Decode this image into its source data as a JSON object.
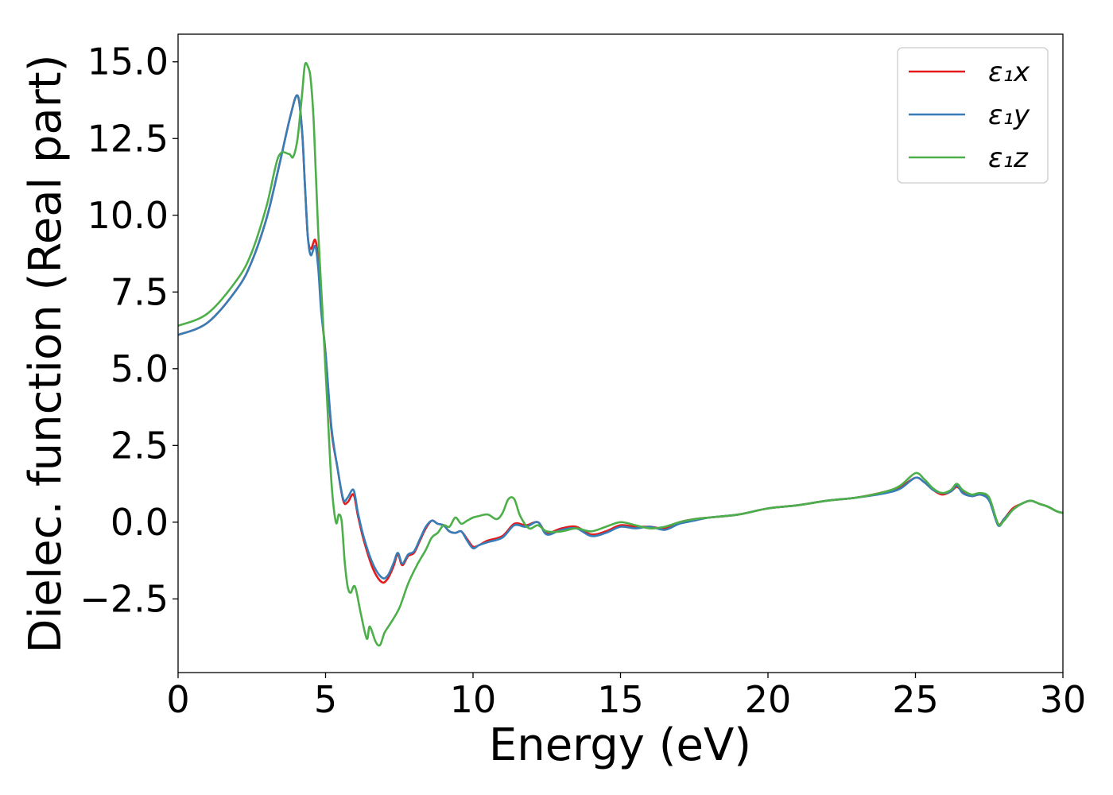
{
  "chart_data": {
    "type": "line",
    "title": "",
    "xlabel": "Energy (eV)",
    "ylabel": "Dielec. function (Real part)",
    "xlim": [
      0,
      30
    ],
    "ylim": [
      -4.9,
      15.9
    ],
    "xticks": [
      0,
      5,
      10,
      15,
      20,
      25,
      30
    ],
    "xtick_labels": [
      "0",
      "5",
      "10",
      "15",
      "20",
      "25",
      "30"
    ],
    "yticks": [
      -2.5,
      0,
      2.5,
      5,
      7.5,
      10,
      12.5,
      15
    ],
    "ytick_labels": [
      "−2.5",
      "0.0",
      "2.5",
      "5.0",
      "7.5",
      "10.0",
      "12.5",
      "15.0"
    ],
    "grid": false,
    "legend": {
      "position": "top-right"
    },
    "series": [
      {
        "name": "ε₁x",
        "color": "#e41a1c",
        "x": [
          0,
          1,
          2,
          2.5,
          3,
          3.4,
          3.8,
          4.05,
          4.2,
          4.3,
          4.4,
          4.5,
          4.65,
          4.75,
          4.85,
          5.0,
          5.2,
          5.4,
          5.6,
          5.75,
          5.95,
          6.1,
          6.3,
          6.6,
          6.9,
          7.1,
          7.3,
          7.45,
          7.6,
          7.8,
          8.0,
          8.2,
          8.4,
          8.6,
          8.8,
          9.0,
          9.2,
          9.4,
          9.6,
          9.8,
          10.0,
          10.2,
          10.5,
          11.0,
          11.4,
          11.8,
          12.2,
          12.5,
          13.0,
          13.5,
          14.0,
          14.5,
          15.0,
          15.5,
          16.0,
          16.5,
          17.0,
          17.5,
          18.0,
          19.0,
          20.0,
          21.0,
          22.0,
          23.0,
          24.0,
          24.5,
          25.0,
          25.3,
          25.6,
          25.9,
          26.2,
          26.4,
          26.6,
          26.9,
          27.2,
          27.5,
          27.8,
          28.0,
          28.3,
          28.6,
          28.9,
          29.2,
          29.5,
          29.8,
          30.0
        ],
        "y": [
          6.1,
          6.5,
          7.6,
          8.5,
          9.9,
          11.5,
          13.2,
          13.9,
          12.8,
          11.0,
          9.3,
          8.9,
          9.2,
          8.5,
          7.0,
          5.5,
          3.0,
          1.8,
          0.7,
          0.65,
          0.9,
          0.2,
          -0.6,
          -1.5,
          -1.95,
          -1.85,
          -1.45,
          -1.05,
          -1.4,
          -1.1,
          -1.0,
          -0.6,
          -0.2,
          0.05,
          -0.05,
          -0.1,
          -0.3,
          -0.35,
          -0.3,
          -0.55,
          -0.8,
          -0.75,
          -0.6,
          -0.45,
          -0.05,
          -0.1,
          0.0,
          -0.35,
          -0.2,
          -0.15,
          -0.4,
          -0.3,
          -0.1,
          -0.15,
          -0.15,
          -0.2,
          0.0,
          0.1,
          0.15,
          0.25,
          0.45,
          0.55,
          0.7,
          0.8,
          1.0,
          1.15,
          1.45,
          1.3,
          1.05,
          0.9,
          1.0,
          1.15,
          1.0,
          0.85,
          0.9,
          0.75,
          -0.05,
          0.1,
          0.45,
          0.6,
          0.7,
          0.6,
          0.5,
          0.35,
          0.3
        ]
      },
      {
        "name": "ε₁y",
        "color": "#377eb8",
        "x": [
          0,
          1,
          2,
          2.5,
          3,
          3.4,
          3.8,
          4.05,
          4.2,
          4.3,
          4.4,
          4.5,
          4.65,
          4.75,
          4.85,
          5.0,
          5.2,
          5.4,
          5.6,
          5.75,
          5.95,
          6.1,
          6.3,
          6.6,
          6.9,
          7.1,
          7.3,
          7.45,
          7.6,
          7.8,
          8.0,
          8.2,
          8.4,
          8.6,
          8.8,
          9.0,
          9.2,
          9.4,
          9.6,
          9.8,
          10.0,
          10.2,
          10.5,
          11.0,
          11.4,
          11.8,
          12.2,
          12.5,
          13.0,
          13.5,
          14.0,
          14.5,
          15.0,
          15.5,
          16.0,
          16.5,
          17.0,
          17.5,
          18.0,
          19.0,
          20.0,
          21.0,
          22.0,
          23.0,
          24.0,
          24.5,
          25.0,
          25.3,
          25.6,
          25.9,
          26.2,
          26.4,
          26.6,
          26.9,
          27.2,
          27.5,
          27.8,
          28.0,
          28.3,
          28.6,
          28.9,
          29.2,
          29.5,
          29.8,
          30.0
        ],
        "y": [
          6.1,
          6.5,
          7.6,
          8.5,
          9.9,
          11.5,
          13.2,
          13.9,
          12.8,
          11.0,
          9.3,
          8.7,
          9.0,
          8.3,
          6.9,
          5.5,
          3.1,
          1.8,
          0.75,
          0.8,
          1.05,
          0.3,
          -0.5,
          -1.35,
          -1.8,
          -1.75,
          -1.35,
          -1.0,
          -1.35,
          -1.05,
          -0.95,
          -0.55,
          -0.15,
          0.05,
          -0.05,
          -0.1,
          -0.3,
          -0.35,
          -0.3,
          -0.6,
          -0.85,
          -0.75,
          -0.65,
          -0.5,
          -0.1,
          -0.15,
          0.0,
          -0.4,
          -0.25,
          -0.2,
          -0.45,
          -0.35,
          -0.15,
          -0.2,
          -0.15,
          -0.25,
          -0.05,
          0.05,
          0.15,
          0.25,
          0.45,
          0.55,
          0.7,
          0.8,
          0.95,
          1.1,
          1.45,
          1.3,
          1.05,
          0.95,
          1.0,
          1.2,
          0.95,
          0.85,
          0.9,
          0.7,
          -0.1,
          0.1,
          0.4,
          0.6,
          0.7,
          0.6,
          0.5,
          0.35,
          0.3
        ]
      },
      {
        "name": "ε₁z",
        "color": "#4daf4a",
        "x": [
          0,
          1,
          2,
          2.5,
          3,
          3.4,
          3.75,
          3.9,
          4.05,
          4.2,
          4.3,
          4.42,
          4.5,
          4.6,
          4.75,
          4.9,
          5.05,
          5.2,
          5.35,
          5.45,
          5.55,
          5.65,
          5.75,
          5.85,
          6.0,
          6.2,
          6.4,
          6.5,
          6.7,
          6.85,
          7.0,
          7.2,
          7.5,
          7.8,
          8.1,
          8.4,
          8.6,
          8.8,
          9.0,
          9.2,
          9.4,
          9.6,
          9.8,
          10.0,
          10.2,
          10.5,
          10.8,
          11.0,
          11.2,
          11.4,
          11.6,
          11.9,
          12.2,
          12.5,
          13.0,
          13.5,
          14.0,
          14.5,
          15.0,
          15.5,
          16.0,
          16.5,
          17.0,
          17.5,
          18.0,
          19.0,
          20.0,
          21.0,
          22.0,
          23.0,
          24.0,
          24.5,
          25.0,
          25.3,
          25.6,
          25.9,
          26.2,
          26.4,
          26.6,
          26.9,
          27.2,
          27.5,
          27.8,
          28.0,
          28.3,
          28.6,
          28.9,
          29.2,
          29.5,
          29.8,
          30.0
        ],
        "y": [
          6.4,
          6.8,
          7.9,
          8.8,
          10.3,
          11.9,
          12.0,
          11.9,
          12.5,
          13.9,
          14.9,
          14.8,
          14.4,
          13.0,
          9.5,
          6.8,
          4.0,
          1.3,
          0.0,
          0.25,
          0.0,
          -1.3,
          -2.1,
          -2.3,
          -2.1,
          -3.0,
          -3.8,
          -3.4,
          -3.9,
          -4.0,
          -3.6,
          -3.3,
          -2.8,
          -2.0,
          -1.4,
          -0.9,
          -0.5,
          -0.35,
          -0.1,
          -0.15,
          0.15,
          -0.05,
          0.05,
          0.15,
          0.2,
          0.25,
          0.1,
          0.3,
          0.75,
          0.75,
          0.2,
          -0.2,
          -0.1,
          -0.3,
          -0.3,
          -0.2,
          -0.3,
          -0.15,
          0.0,
          -0.1,
          -0.2,
          -0.15,
          0.0,
          0.1,
          0.15,
          0.25,
          0.45,
          0.55,
          0.7,
          0.8,
          1.0,
          1.2,
          1.6,
          1.4,
          1.1,
          0.95,
          1.05,
          1.25,
          1.05,
          0.9,
          0.95,
          0.8,
          -0.05,
          0.05,
          0.4,
          0.6,
          0.7,
          0.6,
          0.5,
          0.35,
          0.3
        ]
      }
    ]
  }
}
